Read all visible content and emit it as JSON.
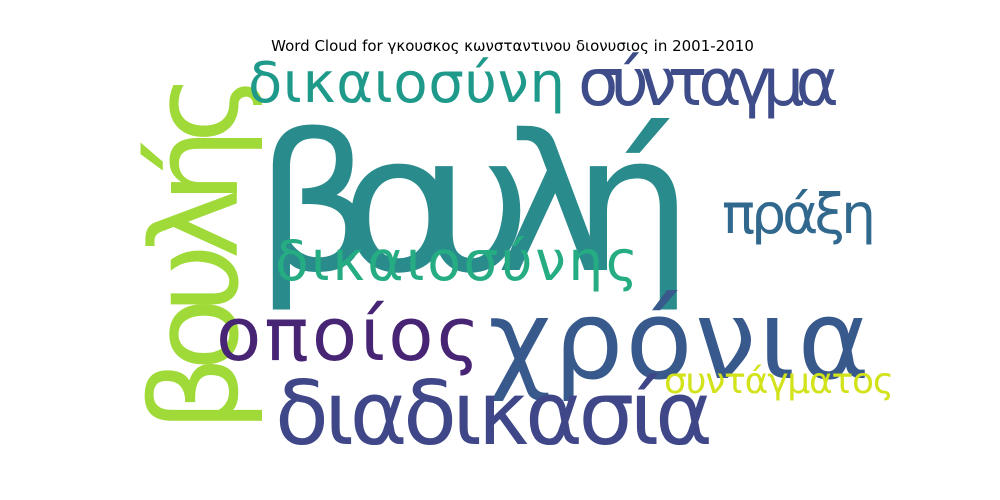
{
  "chart_data": {
    "type": "wordcloud",
    "title": "Word Cloud for γκουσκος κωνσταντινου διονυσιος in 2001-2010",
    "words": [
      {
        "text": "βουλή",
        "weight": 1.0,
        "color": "#2a8b8c"
      },
      {
        "text": "χρόνια",
        "weight": 0.58,
        "color": "#38598c"
      },
      {
        "text": "βουλής",
        "weight": 0.56,
        "color": "#a0da39"
      },
      {
        "text": "διαδικασία",
        "weight": 0.42,
        "color": "#3f4788"
      },
      {
        "text": "οποίος",
        "weight": 0.38,
        "color": "#482475"
      },
      {
        "text": "σύνταγμα",
        "weight": 0.33,
        "color": "#3e4c8a"
      },
      {
        "text": "δικαιοσύνη",
        "weight": 0.32,
        "color": "#1f9a8a"
      },
      {
        "text": "δικαιοσύνης",
        "weight": 0.32,
        "color": "#25ac82"
      },
      {
        "text": "πράξη",
        "weight": 0.3,
        "color": "#31688e"
      },
      {
        "text": "συντάγματος",
        "weight": 0.24,
        "color": "#d2e21b"
      }
    ]
  }
}
